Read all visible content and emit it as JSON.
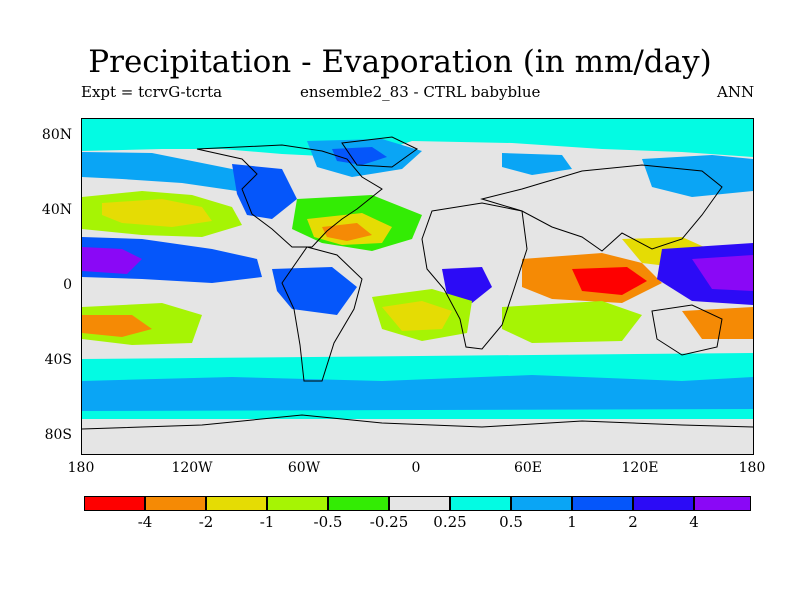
{
  "title": "Precipitation - Evaporation (in mm/day)",
  "experiment": "Expt = tcrvG-tcrta",
  "run": "ensemble2_83 - CTRL babyblue",
  "season": "ANN",
  "lat_ticks": [
    "80N",
    "40N",
    "0",
    "40S",
    "80S"
  ],
  "lon_ticks": [
    "180",
    "120W",
    "60W",
    "0",
    "60E",
    "120E",
    "180"
  ],
  "legend": {
    "colors": [
      "#fe0000",
      "#f58a05",
      "#e5dc04",
      "#a6f404",
      "#33ec04",
      "#e5e5e5",
      "#03fbe3",
      "#0aa5f5",
      "#0556fa",
      "#2c0bf6",
      "#8a08f6"
    ],
    "labels": [
      "-4",
      "-2",
      "-1",
      "-0.5",
      "-0.25",
      "0.25",
      "0.5",
      "1",
      "2",
      "4"
    ]
  },
  "palette": {
    "neutral": "#e5e5e5",
    "land_outline": "#000000"
  }
}
